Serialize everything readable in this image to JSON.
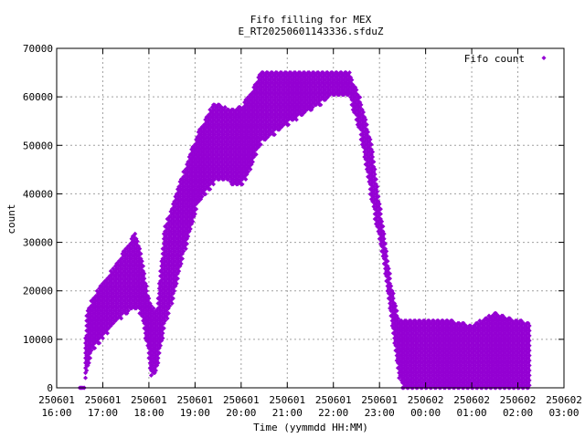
{
  "chart_data": {
    "type": "scatter",
    "title": "Fifo filling for MEX",
    "subtitle": "E_RT20250601143336.sfduZ",
    "xlabel": "Time (yymmdd HH:MM)",
    "ylabel": "count",
    "grid": true,
    "legend_position": "top-right",
    "xlim": [
      "2025-06-01 16:00",
      "2025-06-02 03:00"
    ],
    "ylim": [
      0,
      70000
    ],
    "x_ticks": [
      {
        "date": "250601",
        "time": "16:00"
      },
      {
        "date": "250601",
        "time": "17:00"
      },
      {
        "date": "250601",
        "time": "18:00"
      },
      {
        "date": "250601",
        "time": "19:00"
      },
      {
        "date": "250601",
        "time": "20:00"
      },
      {
        "date": "250601",
        "time": "21:00"
      },
      {
        "date": "250601",
        "time": "22:00"
      },
      {
        "date": "250601",
        "time": "23:00"
      },
      {
        "date": "250602",
        "time": "00:00"
      },
      {
        "date": "250602",
        "time": "01:00"
      },
      {
        "date": "250602",
        "time": "02:00"
      },
      {
        "date": "250602",
        "time": "03:00"
      }
    ],
    "y_ticks": [
      "0",
      "10000",
      "20000",
      "30000",
      "40000",
      "50000",
      "60000",
      "70000"
    ],
    "series": [
      {
        "name": "Fifo count",
        "color": "#9400d3",
        "marker": "diamond",
        "envelope": [
          {
            "x": "2025-06-01 16:30",
            "low": 0,
            "high": 0
          },
          {
            "x": "2025-06-01 16:36",
            "low": 0,
            "high": 0
          },
          {
            "x": "2025-06-01 16:38",
            "low": 2000,
            "high": 15000
          },
          {
            "x": "2025-06-01 16:45",
            "low": 7000,
            "high": 18000
          },
          {
            "x": "2025-06-01 17:00",
            "low": 10000,
            "high": 22000
          },
          {
            "x": "2025-06-01 17:15",
            "low": 13000,
            "high": 25000
          },
          {
            "x": "2025-06-01 17:30",
            "low": 15000,
            "high": 29000
          },
          {
            "x": "2025-06-01 17:42",
            "low": 16000,
            "high": 32000
          },
          {
            "x": "2025-06-01 17:50",
            "low": 15000,
            "high": 28000
          },
          {
            "x": "2025-06-01 17:58",
            "low": 8000,
            "high": 20000
          },
          {
            "x": "2025-06-01 18:03",
            "low": 2000,
            "high": 17000
          },
          {
            "x": "2025-06-01 18:10",
            "low": 3000,
            "high": 16000
          },
          {
            "x": "2025-06-01 18:20",
            "low": 12000,
            "high": 33000
          },
          {
            "x": "2025-06-01 18:35",
            "low": 20000,
            "high": 40000
          },
          {
            "x": "2025-06-01 18:50",
            "low": 30000,
            "high": 47000
          },
          {
            "x": "2025-06-01 19:05",
            "low": 38000,
            "high": 53000
          },
          {
            "x": "2025-06-01 19:25",
            "low": 42000,
            "high": 59000
          },
          {
            "x": "2025-06-01 19:45",
            "low": 42000,
            "high": 57500
          },
          {
            "x": "2025-06-01 20:00",
            "low": 41000,
            "high": 58000
          },
          {
            "x": "2025-06-01 20:15",
            "low": 46000,
            "high": 61500
          },
          {
            "x": "2025-06-01 20:25",
            "low": 50000,
            "high": 65500
          },
          {
            "x": "2025-06-01 21:00",
            "low": 54000,
            "high": 65500
          },
          {
            "x": "2025-06-01 21:30",
            "low": 57000,
            "high": 65500
          },
          {
            "x": "2025-06-01 22:00",
            "low": 60000,
            "high": 65500
          },
          {
            "x": "2025-06-01 22:20",
            "low": 60000,
            "high": 65500
          },
          {
            "x": "2025-06-01 22:35",
            "low": 52000,
            "high": 60000
          },
          {
            "x": "2025-06-01 22:50",
            "low": 38000,
            "high": 50000
          },
          {
            "x": "2025-06-01 23:05",
            "low": 26000,
            "high": 33000
          },
          {
            "x": "2025-06-01 23:15",
            "low": 14000,
            "high": 22000
          },
          {
            "x": "2025-06-01 23:25",
            "low": 2000,
            "high": 14000
          },
          {
            "x": "2025-06-01 23:30",
            "low": 0,
            "high": 14000
          },
          {
            "x": "2025-06-02 00:00",
            "low": 0,
            "high": 14000
          },
          {
            "x": "2025-06-02 00:30",
            "low": 0,
            "high": 14000
          },
          {
            "x": "2025-06-02 01:00",
            "low": 0,
            "high": 13000
          },
          {
            "x": "2025-06-02 01:30",
            "low": 0,
            "high": 15500
          },
          {
            "x": "2025-06-02 02:00",
            "low": 0,
            "high": 14000
          },
          {
            "x": "2025-06-02 02:15",
            "low": 0,
            "high": 13500
          }
        ]
      }
    ]
  }
}
